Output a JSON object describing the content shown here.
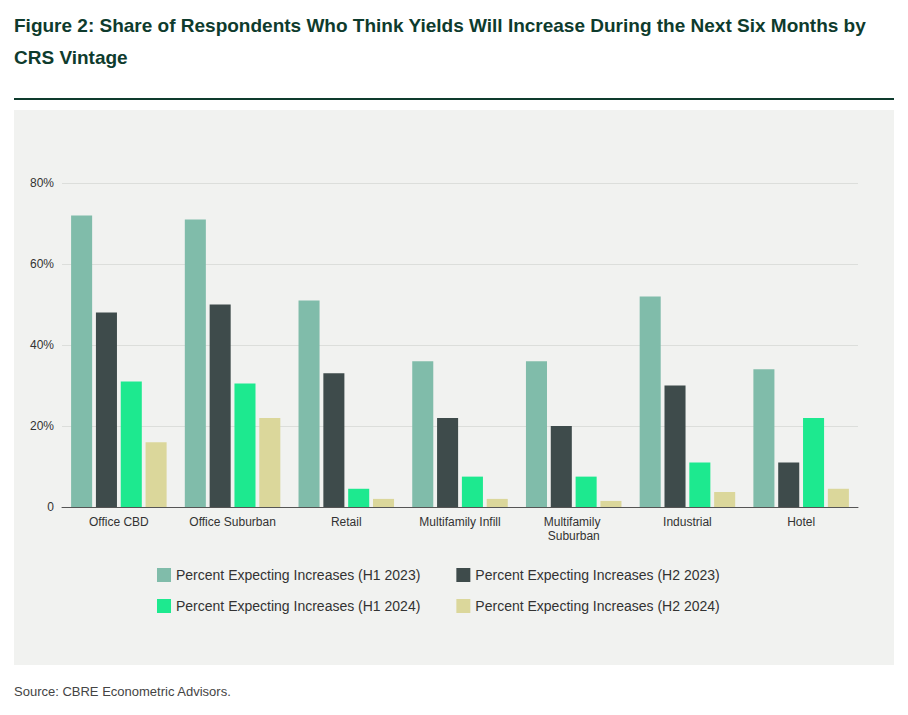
{
  "chart_data": {
    "type": "bar",
    "title": "Figure 2: Share of Respondents Who Think Yields Will Increase During the Next Six Months by CRS Vintage",
    "source": "Source: CBRE Econometric Advisors.",
    "categories": [
      "Office CBD",
      "Office Suburban",
      "Retail",
      "Multifamily Infill",
      "Multifamily Suburban",
      "Industrial",
      "Hotel"
    ],
    "series": [
      {
        "name": "Percent Expecting Increases (H1 2023)",
        "color": "#80bcaa",
        "values": [
          72,
          71,
          51,
          36,
          36,
          52,
          34
        ]
      },
      {
        "name": "Percent Expecting Increases (H2 2023)",
        "color": "#3e4b4b",
        "values": [
          48,
          50,
          33,
          22,
          20,
          30,
          11
        ]
      },
      {
        "name": "Percent Expecting Increases (H1 2024)",
        "color": "#1de98f",
        "values": [
          31,
          30.5,
          4.5,
          7.5,
          7.5,
          11,
          22
        ]
      },
      {
        "name": "Percent Expecting Increases (H2 2024)",
        "color": "#dbd79b",
        "values": [
          16,
          22,
          2,
          2,
          1.5,
          3.7,
          4.5
        ]
      }
    ],
    "ylim": [
      0,
      80
    ],
    "yticks": [
      0,
      {
        "value": 20,
        "label": "20%"
      },
      {
        "value": 40,
        "label": "40%"
      },
      {
        "value": 60,
        "label": "60%"
      },
      {
        "value": 80,
        "label": "80%"
      }
    ],
    "grid": true,
    "legend": "bottom"
  }
}
